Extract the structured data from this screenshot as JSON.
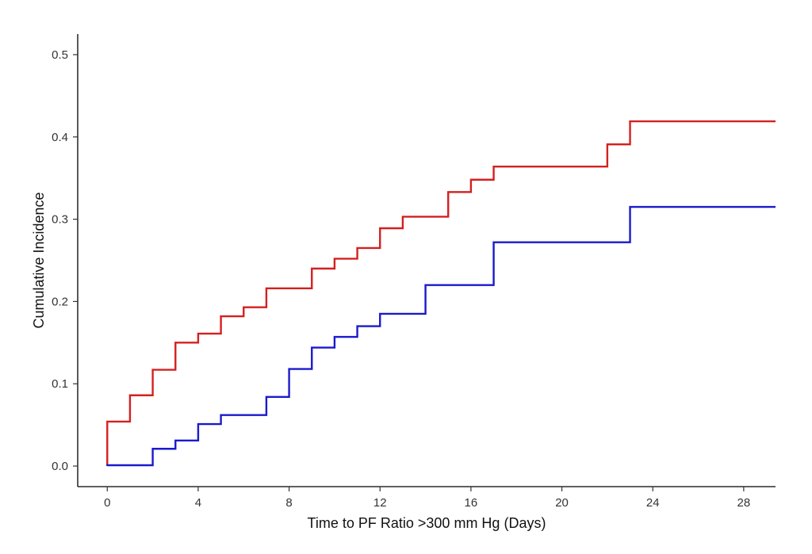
{
  "chart_data": {
    "type": "line",
    "step": true,
    "title": "",
    "xlabel": "Time to PF Ratio >300 mm Hg  (Days)",
    "ylabel": "Cumulative Incidence",
    "xlim": [
      -1.3,
      29.4
    ],
    "ylim": [
      -0.025,
      0.525
    ],
    "xticks": [
      0,
      4,
      8,
      12,
      16,
      20,
      24,
      28
    ],
    "yticks": [
      0.0,
      0.1,
      0.2,
      0.3,
      0.4,
      0.5
    ],
    "ytick_labels": [
      "0.0",
      "0.1",
      "0.2",
      "0.3",
      "0.4",
      "0.5"
    ],
    "grid": false,
    "legend": "none",
    "series": [
      {
        "color": "#d42020",
        "x": [
          0,
          1,
          2,
          3,
          4,
          5,
          6,
          7,
          9,
          10,
          11,
          12,
          13,
          15,
          16,
          17,
          22,
          23,
          29.4
        ],
        "y": [
          0.054,
          0.086,
          0.117,
          0.15,
          0.161,
          0.182,
          0.193,
          0.216,
          0.24,
          0.252,
          0.265,
          0.289,
          0.303,
          0.333,
          0.348,
          0.364,
          0.391,
          0.419,
          0.419
        ]
      },
      {
        "color": "#1a1acc",
        "x": [
          0,
          2,
          3,
          4,
          5,
          7,
          8,
          9,
          10,
          11,
          12,
          14,
          17,
          23,
          29.4
        ],
        "y": [
          0.001,
          0.021,
          0.031,
          0.051,
          0.062,
          0.084,
          0.118,
          0.144,
          0.157,
          0.17,
          0.185,
          0.22,
          0.272,
          0.315,
          0.315
        ]
      }
    ]
  }
}
